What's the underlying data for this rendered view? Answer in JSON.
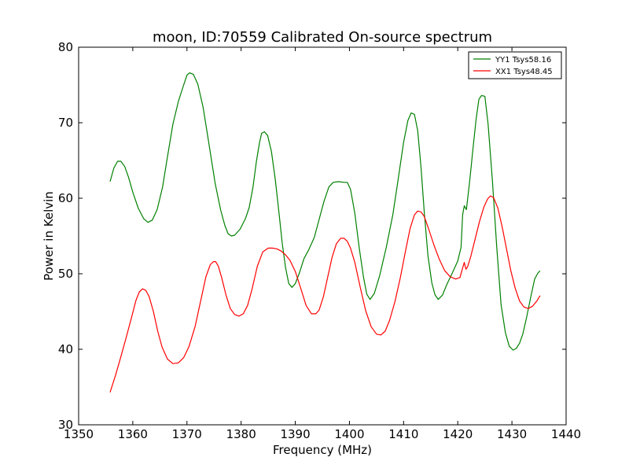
{
  "chart_data": {
    "type": "line",
    "title": "moon, ID:70559 Calibrated On-source spectrum",
    "xlabel": "Frequency (MHz)",
    "ylabel": "Power in Kelvin",
    "xlim": [
      1350,
      1440
    ],
    "ylim": [
      30,
      80
    ],
    "xticks": [
      1350,
      1360,
      1370,
      1380,
      1390,
      1400,
      1410,
      1420,
      1430,
      1440
    ],
    "yticks": [
      30,
      40,
      50,
      60,
      70,
      80
    ],
    "grid": false,
    "legend_position": "top-right",
    "series": [
      {
        "name": "YY1 Tsys58.16",
        "color": "#008000",
        "x": [
          1355.8,
          1356.5,
          1357.2,
          1357.8,
          1358.5,
          1359.2,
          1360,
          1361,
          1362,
          1362.8,
          1363.6,
          1364.5,
          1365.5,
          1366.4,
          1367.4,
          1368.4,
          1369.4,
          1370,
          1370.5,
          1371.2,
          1372,
          1373,
          1374,
          1375.2,
          1376.2,
          1377,
          1377.6,
          1378.2,
          1378.8,
          1379.8,
          1380.8,
          1381.5,
          1382.2,
          1382.8,
          1383.4,
          1383.8,
          1384.3,
          1384.9,
          1385.6,
          1386.3,
          1387,
          1387.6,
          1388.2,
          1388.8,
          1389.4,
          1390,
          1390.8,
          1391.6,
          1392.5,
          1393.5,
          1394.4,
          1395.3,
          1396.2,
          1397,
          1398,
          1399,
          1399.6,
          1400.2,
          1401,
          1401.8,
          1402.6,
          1403.2,
          1403.8,
          1404.6,
          1405.6,
          1406.8,
          1408,
          1409,
          1410,
          1410.8,
          1411.4,
          1412,
          1412.6,
          1413.2,
          1413.8,
          1414.5,
          1415.2,
          1415.8,
          1416.4,
          1417.2,
          1418,
          1419,
          1420,
          1420.6,
          1420.9,
          1421.2,
          1421.6,
          1422.2,
          1422.8,
          1423.4,
          1423.9,
          1424.4,
          1425,
          1425.6,
          1426.4,
          1427.2,
          1428,
          1428.8,
          1429.5,
          1430.2,
          1430.8,
          1431.4,
          1432,
          1432.7,
          1433.5,
          1434.2,
          1434.8,
          1435.2
        ],
        "values": [
          62.2,
          64,
          64.9,
          64.9,
          64.2,
          62.8,
          60.8,
          58.7,
          57.3,
          56.8,
          57.1,
          58.5,
          61.5,
          65.5,
          69.8,
          72.8,
          75,
          76.3,
          76.6,
          76.4,
          75.1,
          72,
          67.5,
          62,
          58.5,
          56.4,
          55.3,
          55,
          55.1,
          55.9,
          57.3,
          58.8,
          61.5,
          64.8,
          67.4,
          68.6,
          68.8,
          68.3,
          66.2,
          62.5,
          58,
          54,
          50.8,
          48.7,
          48.2,
          48.7,
          50.2,
          52,
          53.2,
          54.8,
          57.2,
          59.6,
          61.5,
          62.1,
          62.2,
          62.1,
          62.1,
          61.2,
          58,
          53.5,
          49.5,
          47.3,
          46.6,
          47.4,
          49.8,
          53.5,
          57.8,
          62.5,
          67.4,
          70.3,
          71.3,
          71.1,
          69,
          64.2,
          58.3,
          52.4,
          48.8,
          47.2,
          46.6,
          47.2,
          48.6,
          50.1,
          51.7,
          53.5,
          57.8,
          59,
          58.5,
          62.3,
          66.5,
          70.5,
          73.1,
          73.6,
          73.5,
          69.8,
          62.3,
          53.5,
          45.9,
          42.2,
          40.4,
          39.9,
          40.1,
          40.8,
          42,
          44.2,
          47,
          49.3,
          50.1,
          50.4
        ]
      },
      {
        "name": "XX1 Tsys48.45",
        "color": "#ff0000",
        "x": [
          1355.8,
          1356.8,
          1357.8,
          1358.8,
          1359.8,
          1360.6,
          1361.2,
          1361.8,
          1362.4,
          1363,
          1363.8,
          1364.6,
          1365.4,
          1366.4,
          1367.4,
          1368.4,
          1369.4,
          1370.4,
          1371.5,
          1372.5,
          1373.5,
          1374.3,
          1374.9,
          1375.3,
          1375.8,
          1376.4,
          1377.2,
          1378,
          1378.8,
          1379.6,
          1380.4,
          1381.2,
          1382,
          1383,
          1384,
          1385,
          1385.8,
          1386.6,
          1387.4,
          1388.2,
          1389,
          1390,
          1391,
          1392,
          1393,
          1393.8,
          1394.4,
          1395.2,
          1396,
          1396.8,
          1397.6,
          1398.4,
          1399,
          1399.6,
          1400.2,
          1401,
          1402,
          1403,
          1404,
          1405,
          1405.8,
          1406.6,
          1407.4,
          1408.4,
          1409.4,
          1410.4,
          1411.2,
          1412,
          1412.6,
          1413.2,
          1413.8,
          1414.6,
          1415.6,
          1416.6,
          1417.6,
          1418.6,
          1419.6,
          1420.4,
          1420.8,
          1421.2,
          1421.5,
          1421.8,
          1422.4,
          1423.2,
          1424,
          1424.8,
          1425.5,
          1426,
          1426.6,
          1427.4,
          1428.2,
          1429,
          1429.8,
          1430.6,
          1431.4,
          1432.2,
          1433,
          1433.8,
          1434.6,
          1435.2
        ],
        "values": [
          34.3,
          36.5,
          39,
          41.6,
          44.3,
          46.5,
          47.6,
          48,
          47.8,
          47,
          45,
          42.4,
          40.3,
          38.7,
          38.1,
          38.2,
          38.9,
          40.4,
          43,
          46.3,
          49.6,
          51.2,
          51.6,
          51.6,
          51,
          49.5,
          47.2,
          45.4,
          44.6,
          44.4,
          44.7,
          45.8,
          47.9,
          51,
          52.9,
          53.4,
          53.4,
          53.3,
          53,
          52.5,
          51.8,
          50.3,
          48.1,
          45.8,
          44.7,
          44.7,
          45.2,
          47,
          49.6,
          52.2,
          54,
          54.7,
          54.7,
          54.3,
          53.4,
          51.5,
          48.2,
          45.1,
          43,
          42,
          41.9,
          42.4,
          43.8,
          46.3,
          49.5,
          53.2,
          56,
          57.8,
          58.3,
          58.2,
          57.6,
          56,
          53.8,
          51.9,
          50.4,
          49.6,
          49.3,
          49.5,
          50.5,
          51.5,
          50.6,
          50.9,
          52.3,
          54.6,
          56.9,
          58.8,
          59.9,
          60.3,
          60.1,
          58.7,
          56.2,
          53.3,
          50.4,
          48.1,
          46.4,
          45.6,
          45.4,
          45.7,
          46.4,
          47.1
        ]
      }
    ]
  }
}
